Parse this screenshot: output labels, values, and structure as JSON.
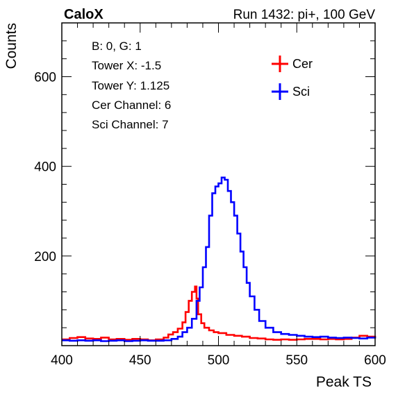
{
  "header": {
    "left": "CaloX",
    "right": "Run 1432: pi+, 100 GeV"
  },
  "info_box": {
    "lines": [
      "B: 0, G: 1",
      "Tower X: -1.5",
      "Tower Y: 1.125",
      "Cer Channel: 6",
      "Sci Channel: 7"
    ]
  },
  "chart_data": {
    "type": "line",
    "xlabel": "Peak TS",
    "ylabel": "Counts",
    "xlim": [
      400,
      600
    ],
    "ylim": [
      0,
      720
    ],
    "xticks": [
      400,
      450,
      500,
      550,
      600
    ],
    "yticks": [
      200,
      400,
      600
    ],
    "grid": false,
    "legend_position": "top-right",
    "series": [
      {
        "name": "Cer",
        "color": "#ff0000",
        "points": [
          [
            400,
            14
          ],
          [
            405,
            17
          ],
          [
            410,
            19
          ],
          [
            415,
            16
          ],
          [
            420,
            15
          ],
          [
            425,
            18
          ],
          [
            430,
            14
          ],
          [
            435,
            15
          ],
          [
            440,
            13
          ],
          [
            445,
            15
          ],
          [
            450,
            14
          ],
          [
            455,
            12
          ],
          [
            460,
            14
          ],
          [
            465,
            18
          ],
          [
            468,
            25
          ],
          [
            471,
            30
          ],
          [
            474,
            38
          ],
          [
            477,
            52
          ],
          [
            479,
            75
          ],
          [
            481,
            100
          ],
          [
            483,
            120
          ],
          [
            485,
            132
          ],
          [
            486,
            105
          ],
          [
            487,
            70
          ],
          [
            489,
            50
          ],
          [
            491,
            40
          ],
          [
            494,
            34
          ],
          [
            497,
            30
          ],
          [
            500,
            28
          ],
          [
            505,
            24
          ],
          [
            510,
            22
          ],
          [
            515,
            20
          ],
          [
            520,
            17
          ],
          [
            525,
            16
          ],
          [
            530,
            14
          ],
          [
            535,
            13
          ],
          [
            540,
            14
          ],
          [
            545,
            13
          ],
          [
            550,
            14
          ],
          [
            555,
            15
          ],
          [
            560,
            15
          ],
          [
            565,
            14
          ],
          [
            570,
            15
          ],
          [
            575,
            14
          ],
          [
            580,
            15
          ],
          [
            585,
            18
          ],
          [
            590,
            22
          ],
          [
            595,
            20
          ],
          [
            600,
            22
          ]
        ]
      },
      {
        "name": "Sci",
        "color": "#0000ff",
        "points": [
          [
            400,
            12
          ],
          [
            405,
            11
          ],
          [
            410,
            12
          ],
          [
            415,
            11
          ],
          [
            420,
            12
          ],
          [
            425,
            10
          ],
          [
            430,
            11
          ],
          [
            435,
            12
          ],
          [
            440,
            10
          ],
          [
            445,
            11
          ],
          [
            450,
            12
          ],
          [
            455,
            11
          ],
          [
            460,
            11
          ],
          [
            465,
            12
          ],
          [
            470,
            15
          ],
          [
            474,
            20
          ],
          [
            477,
            30
          ],
          [
            480,
            40
          ],
          [
            483,
            60
          ],
          [
            486,
            100
          ],
          [
            488,
            130
          ],
          [
            490,
            175
          ],
          [
            492,
            220
          ],
          [
            494,
            290
          ],
          [
            496,
            340
          ],
          [
            498,
            355
          ],
          [
            500,
            362
          ],
          [
            502,
            375
          ],
          [
            504,
            370
          ],
          [
            506,
            345
          ],
          [
            508,
            320
          ],
          [
            510,
            290
          ],
          [
            512,
            250
          ],
          [
            514,
            210
          ],
          [
            516,
            175
          ],
          [
            518,
            140
          ],
          [
            520,
            110
          ],
          [
            523,
            80
          ],
          [
            526,
            55
          ],
          [
            530,
            40
          ],
          [
            535,
            30
          ],
          [
            540,
            26
          ],
          [
            545,
            24
          ],
          [
            550,
            22
          ],
          [
            555,
            20
          ],
          [
            560,
            19
          ],
          [
            565,
            20
          ],
          [
            570,
            18
          ],
          [
            575,
            17
          ],
          [
            580,
            18
          ],
          [
            585,
            17
          ],
          [
            590,
            16
          ],
          [
            595,
            18
          ],
          [
            600,
            20
          ]
        ]
      }
    ]
  }
}
